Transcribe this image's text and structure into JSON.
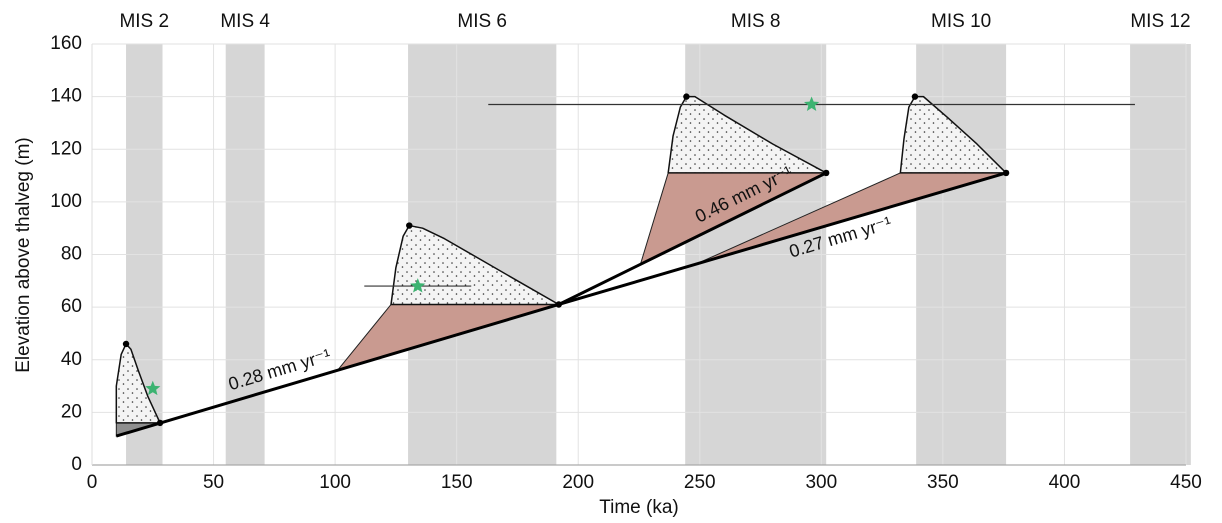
{
  "chart_data": {
    "type": "scatter",
    "x_label": "Time (ka)",
    "y_label": "Elevation above thalveg (m)",
    "xlim": [
      0,
      450
    ],
    "ylim": [
      0,
      160
    ],
    "xticks": [
      0,
      50,
      100,
      150,
      200,
      250,
      300,
      350,
      400,
      450
    ],
    "yticks": [
      0,
      20,
      40,
      60,
      80,
      100,
      120,
      140,
      160
    ],
    "grid": true,
    "stage_color": "#d6d6d6",
    "stages": [
      {
        "name": "MIS 2",
        "start": 14,
        "end": 29
      },
      {
        "name": "MIS 4",
        "start": 55,
        "end": 71
      },
      {
        "name": "MIS 6",
        "start": 130,
        "end": 191
      },
      {
        "name": "MIS 8",
        "start": 244,
        "end": 302
      },
      {
        "name": "MIS 10",
        "start": 339,
        "end": 376
      },
      {
        "name": "MIS 12",
        "start": 427,
        "end": 452
      }
    ],
    "rates": [
      {
        "label": "0.28 mm yr⁻¹",
        "x": [
          10,
          192
        ],
        "y": [
          11,
          61
        ]
      },
      {
        "label": "0.46 mm yr⁻¹",
        "x": [
          192,
          302
        ],
        "y": [
          61,
          111
        ]
      },
      {
        "label": "0.27 mm yr⁻¹",
        "x": [
          192,
          376
        ],
        "y": [
          61,
          111
        ]
      }
    ],
    "terraces": [
      {
        "fill_x": [
          10,
          10,
          12,
          14,
          16,
          19,
          23,
          28
        ],
        "fill_y": [
          16,
          30,
          42,
          46,
          44,
          36,
          26,
          16
        ],
        "strath_x": [
          10,
          10,
          28
        ],
        "strath_y": [
          11,
          16,
          16
        ],
        "strath_color": "#8f8f8f"
      },
      {
        "fill_x": [
          123,
          125,
          128,
          130.5,
          136,
          145,
          160,
          175,
          192
        ],
        "fill_y": [
          61,
          75,
          87,
          91,
          90,
          86,
          78,
          70,
          61
        ],
        "strath_x": [
          101,
          123,
          192
        ],
        "strath_y": [
          36,
          61,
          61
        ],
        "strath_color": "#c99a90"
      },
      {
        "fill_x": [
          237,
          239,
          242,
          244.5,
          248,
          260,
          280,
          302
        ],
        "fill_y": [
          111,
          125,
          136,
          140,
          140,
          133,
          122,
          111
        ],
        "strath_x": [
          225.5,
          237,
          302
        ],
        "strath_y": [
          76,
          111,
          111
        ],
        "strath_color": "#c99a90"
      },
      {
        "fill_x": [
          332.5,
          334,
          336,
          338.5,
          342,
          352,
          364,
          376
        ],
        "fill_y": [
          111,
          124,
          136,
          140,
          140,
          132,
          122,
          111
        ],
        "strath_x": [
          250,
          332.5,
          376
        ],
        "strath_y": [
          77,
          111,
          111
        ],
        "strath_color": "#c99a90"
      }
    ],
    "ages": {
      "x": [
        25,
        134,
        296
      ],
      "y": [
        29,
        68,
        137
      ],
      "xerr": [
        null,
        22,
        133
      ],
      "color": "#3cb371"
    }
  }
}
